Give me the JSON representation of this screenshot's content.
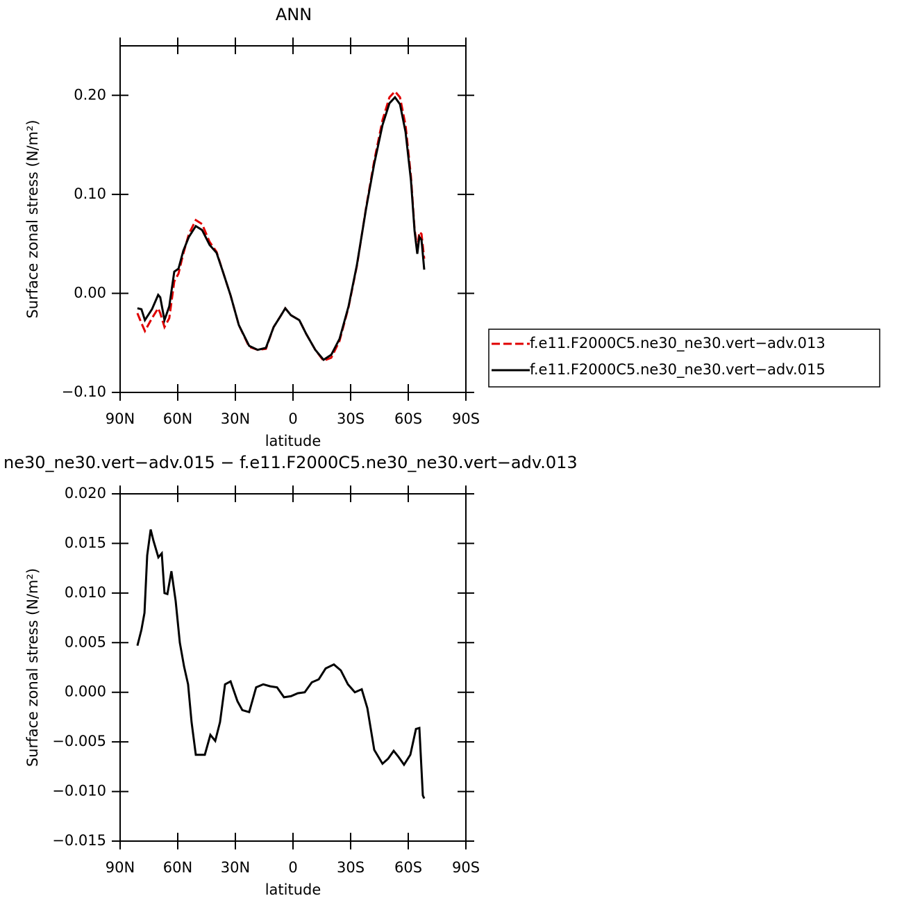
{
  "chart_data": [
    {
      "type": "line",
      "title": "ANN",
      "x_label": "latitude",
      "y_label": "Surface zonal stress (N/m²)",
      "xlim": [
        90,
        -90
      ],
      "xticks": [
        {
          "value": 90,
          "label": "90N"
        },
        {
          "value": 60,
          "label": "60N"
        },
        {
          "value": 30,
          "label": "30N"
        },
        0,
        {
          "value": -30,
          "label": "30S"
        },
        {
          "value": -60,
          "label": "60S"
        },
        {
          "value": -90,
          "label": "90S"
        }
      ],
      "ylim": [
        -0.1,
        0.25
      ],
      "yticks": [
        {
          "value": -0.1,
          "label": "−0.10"
        },
        {
          "value": 0,
          "label": "0.00"
        },
        {
          "value": 0.1,
          "label": "0.10"
        },
        {
          "value": 0.2,
          "label": "0.20"
        }
      ],
      "legend": "right",
      "x": [
        81,
        78.9,
        77.1,
        73.4,
        70.2,
        69.1,
        66.9,
        64.4,
        61.8,
        59.6,
        57.1,
        54.2,
        50.6,
        47.3,
        43.4,
        39.8,
        36.5,
        32.5,
        28.2,
        22.8,
        18.4,
        14.1,
        10.1,
        6.5,
        4.0,
        1.1,
        -3.3,
        -6.9,
        -11.6,
        -15.9,
        -19.9,
        -24.2,
        -28.9,
        -33.3,
        -38.0,
        -42.3,
        -46.6,
        -50.2,
        -53.1,
        -55.7,
        -58.6,
        -61.4,
        -63.3,
        -64.7,
        -65.8,
        -66.9,
        -68.3
      ],
      "series": [
        {
          "name": "f.e11.F2000C5.ne30_ne30.vert−adv.013",
          "color": "#e00000",
          "style": "dashed",
          "values": [
            -0.02,
            -0.03,
            -0.038,
            -0.025,
            -0.015,
            -0.02,
            -0.034,
            -0.025,
            0.012,
            0.02,
            0.04,
            0.06,
            0.074,
            0.07,
            0.052,
            0.042,
            0.022,
            -0.002,
            -0.032,
            -0.054,
            -0.057,
            -0.056,
            -0.034,
            -0.023,
            -0.015,
            -0.022,
            -0.027,
            -0.041,
            -0.057,
            -0.068,
            -0.065,
            -0.048,
            -0.014,
            0.028,
            0.086,
            0.134,
            0.175,
            0.198,
            0.204,
            0.198,
            0.17,
            0.118,
            0.065,
            0.045,
            0.062,
            0.06,
            0.035
          ]
        },
        {
          "name": "f.e11.F2000C5.ne30_ne30.vert−adv.015",
          "color": "#000000",
          "style": "solid",
          "values": [
            -0.015,
            -0.016,
            -0.027,
            -0.016,
            -0.0015,
            -0.004,
            -0.027,
            -0.013,
            0.022,
            0.025,
            0.043,
            0.057,
            0.068,
            0.064,
            0.049,
            0.041,
            0.022,
            -0.002,
            -0.032,
            -0.053,
            -0.057,
            -0.055,
            -0.034,
            -0.023,
            -0.015,
            -0.022,
            -0.027,
            -0.041,
            -0.057,
            -0.067,
            -0.062,
            -0.046,
            -0.013,
            0.029,
            0.085,
            0.131,
            0.17,
            0.192,
            0.198,
            0.191,
            0.163,
            0.114,
            0.063,
            0.04,
            0.057,
            0.054,
            0.024
          ]
        }
      ]
    },
    {
      "type": "line",
      "title": "ne30_ne30.vert−adv.015 − f.e11.F2000C5.ne30_ne30.vert−adv.013",
      "x_label": "latitude",
      "y_label": "Surface zonal stress (N/m²)",
      "xlim": [
        90,
        -90
      ],
      "xticks": [
        {
          "value": 90,
          "label": "90N"
        },
        {
          "value": 60,
          "label": "60N"
        },
        {
          "value": 30,
          "label": "30N"
        },
        0,
        {
          "value": -30,
          "label": "30S"
        },
        {
          "value": -60,
          "label": "60S"
        },
        {
          "value": -90,
          "label": "90S"
        }
      ],
      "ylim": [
        -0.015,
        0.02
      ],
      "yticks": [
        {
          "value": -0.015,
          "label": "−0.015"
        },
        {
          "value": -0.01,
          "label": "−0.010"
        },
        {
          "value": -0.005,
          "label": "−0.005"
        },
        {
          "value": 0,
          "label": "0.000"
        },
        {
          "value": 0.005,
          "label": "0.005"
        },
        {
          "value": 0.01,
          "label": "0.010"
        },
        {
          "value": 0.015,
          "label": "0.015"
        },
        {
          "value": 0.02,
          "label": "0.020"
        }
      ],
      "x": [
        81,
        78.9,
        77.3,
        75.9,
        74.1,
        72.7,
        70.1,
        68.3,
        66.9,
        65.4,
        63.3,
        61.1,
        58.9,
        56.7,
        54.6,
        52.8,
        50.6,
        48.1,
        45.9,
        43.0,
        40.5,
        38.0,
        35.4,
        32.5,
        28.9,
        26.4,
        22.8,
        19.2,
        15.5,
        11.9,
        8.3,
        4.7,
        1.1,
        -2.5,
        -6.1,
        -9.8,
        -13.4,
        -17.0,
        -21.3,
        -24.9,
        -28.6,
        -32.2,
        -35.8,
        -38.7,
        -42.3,
        -46.6,
        -49.5,
        -52.4,
        -54.9,
        -57.8,
        -61.1,
        -64.0,
        -65.8,
        -67.6,
        -68.3
      ],
      "series": [
        {
          "color": "#000000",
          "style": "solid",
          "values": [
            0.0047,
            0.0063,
            0.008,
            0.0138,
            0.0164,
            0.0153,
            0.0136,
            0.014,
            0.01,
            0.0099,
            0.0122,
            0.0092,
            0.005,
            0.0026,
            0.0008,
            -0.003,
            -0.0063,
            -0.0063,
            -0.0063,
            -0.0043,
            -0.0049,
            -0.003,
            0.0008,
            0.0011,
            -0.0009,
            -0.0018,
            -0.002,
            0.0005,
            0.0008,
            0.0006,
            0.0005,
            -0.0005,
            -0.0004,
            -0.0001,
            0.0,
            0.001,
            0.0013,
            0.0024,
            0.0028,
            0.0022,
            0.0008,
            0.0,
            0.0003,
            -0.0016,
            -0.0058,
            -0.0072,
            -0.0067,
            -0.0059,
            -0.0065,
            -0.0073,
            -0.0063,
            -0.0037,
            -0.0036,
            -0.0104,
            -0.0107
          ]
        }
      ]
    }
  ]
}
